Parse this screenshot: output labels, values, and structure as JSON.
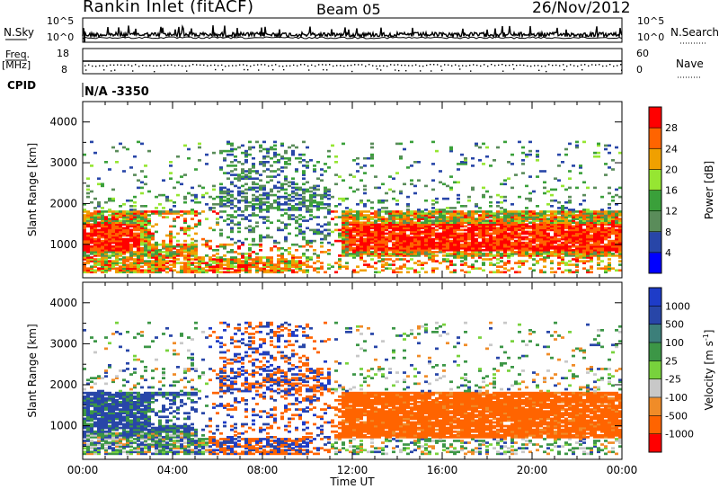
{
  "header": {
    "title": "Rankin Inlet (fitACF)",
    "beam": "Beam 05",
    "date": "26/Nov/2012"
  },
  "panels": {
    "sky_label": "N.Sky",
    "search_label": "N.Search",
    "freq_label_line1": "Freq.",
    "freq_label_line2": "[MHz]",
    "nave_label": "Nave",
    "cpid_label": "CPID",
    "cpid_value": "N/A -3350",
    "sky_ticks_left": [
      "10^5",
      "10^0"
    ],
    "sky_ticks_right": [
      "10^5",
      "10^0"
    ],
    "freq_ticks": [
      "18",
      "8"
    ],
    "nave_ticks": [
      "60",
      "0"
    ]
  },
  "chart_data": [
    {
      "type": "heatmap",
      "title": "",
      "ylabel": "Slant Range [km]",
      "xlabel": "",
      "yticks": [
        "1000",
        "2000",
        "3000",
        "4000"
      ],
      "ylim": [
        180,
        4500
      ],
      "colorbar_label": "Power [dB]",
      "colorbar_ticks": [
        "28",
        "24",
        "20",
        "16",
        "12",
        "8",
        "4"
      ],
      "colorbar_colors": [
        "#0000ff",
        "#2846a8",
        "#5a8c5a",
        "#3aa03a",
        "#96e632",
        "#f0a000",
        "#ff6400",
        "#ff0000"
      ]
    },
    {
      "type": "heatmap",
      "title": "",
      "ylabel": "Slant Range [km]",
      "xlabel": "Time UT",
      "xticks": [
        "00:00",
        "04:00",
        "08:00",
        "12:00",
        "16:00",
        "20:00",
        "00:00"
      ],
      "yticks": [
        "1000",
        "2000",
        "3000",
        "4000"
      ],
      "ylim": [
        180,
        4500
      ],
      "colorbar_label": "Velocity [m s^-1]",
      "colorbar_ticks": [
        "1000",
        "500",
        "100",
        "25",
        "-25",
        "-100",
        "-500",
        "-1000"
      ],
      "colorbar_colors": [
        "#ff0000",
        "#ff6400",
        "#f08c28",
        "#c8c8c8",
        "#78d23c",
        "#3c9646",
        "#3c7f7a",
        "#2846a8",
        "#1e3cc8"
      ]
    }
  ]
}
